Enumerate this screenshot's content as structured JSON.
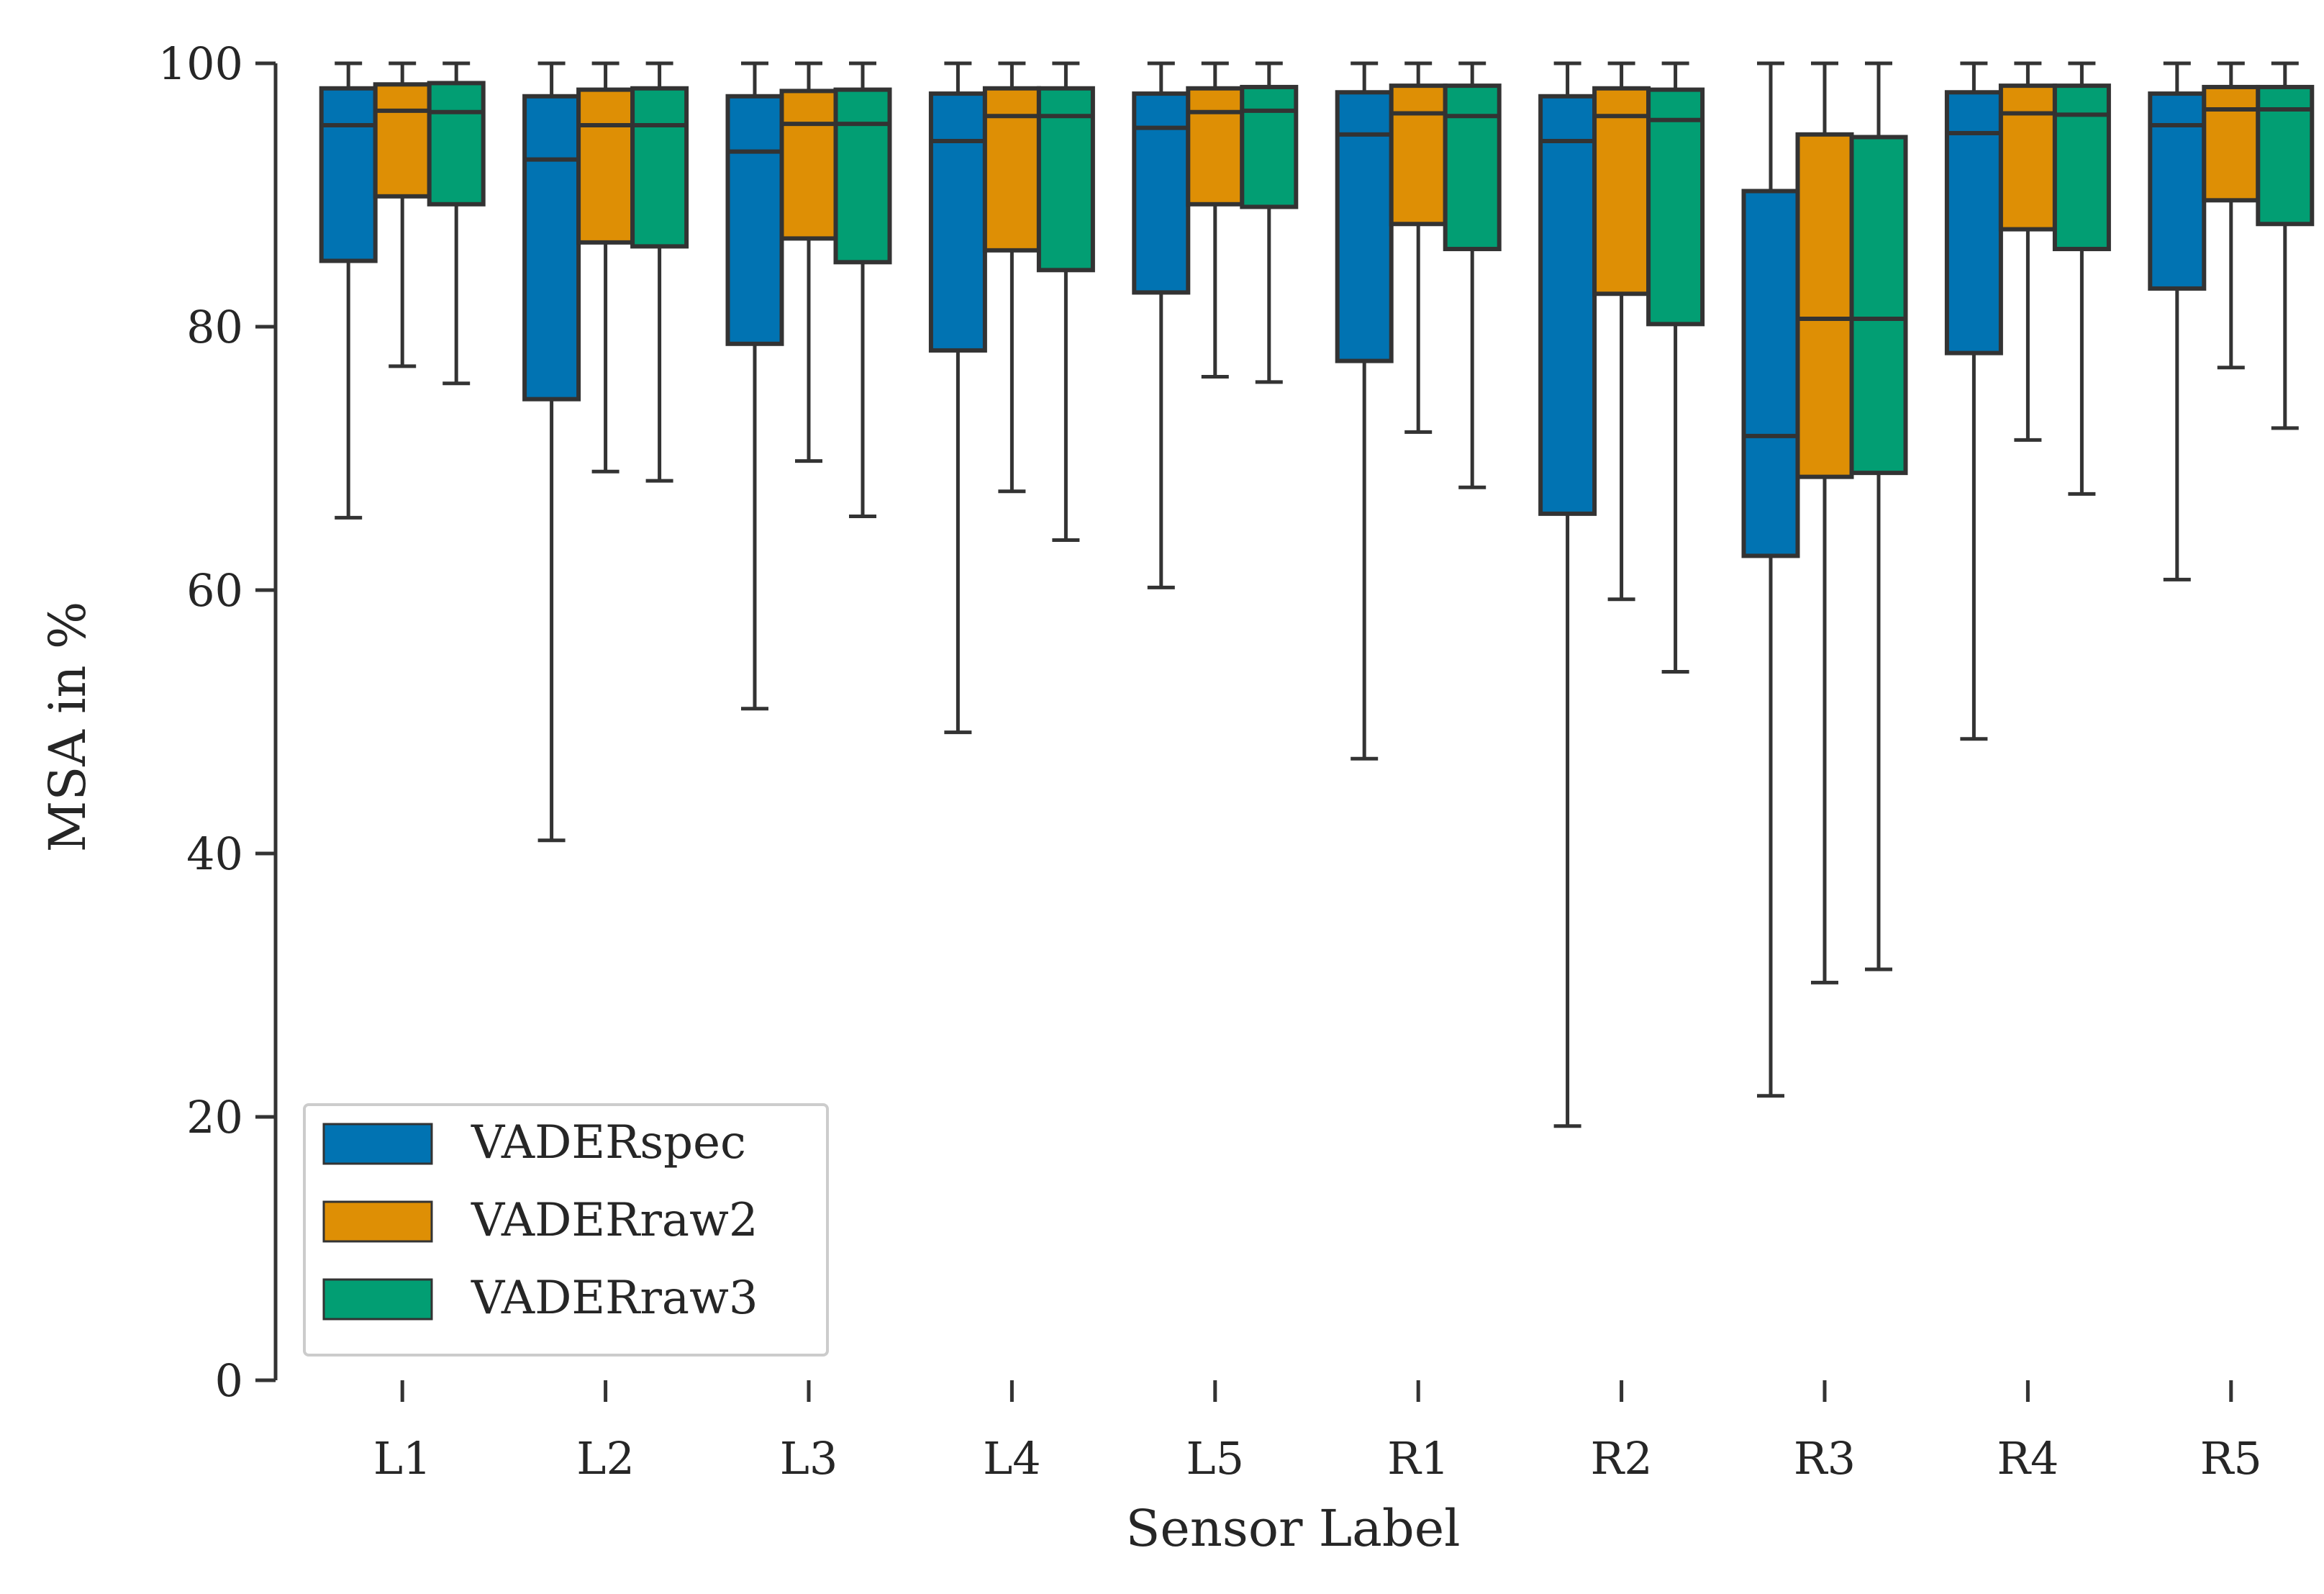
{
  "chart_data": {
    "type": "box",
    "xlabel": "Sensor Label",
    "ylabel": "MSA in %",
    "ylim": [
      0,
      100
    ],
    "yticks": [
      0,
      20,
      40,
      60,
      80,
      100
    ],
    "categories": [
      "L1",
      "L2",
      "L3",
      "L4",
      "L5",
      "R1",
      "R2",
      "R3",
      "R4",
      "R5"
    ],
    "legend": {
      "placement": "lower-left"
    },
    "grid": false,
    "series": [
      {
        "name": "VADERspec",
        "color": "#0173b2",
        "boxes": [
          {
            "whisker_low": 65.5,
            "q1": 85.0,
            "median": 95.3,
            "q3": 98.1,
            "whisker_high": 100
          },
          {
            "whisker_low": 41.0,
            "q1": 74.5,
            "median": 92.7,
            "q3": 97.5,
            "whisker_high": 100
          },
          {
            "whisker_low": 51.0,
            "q1": 78.7,
            "median": 93.3,
            "q3": 97.5,
            "whisker_high": 100
          },
          {
            "whisker_low": 49.2,
            "q1": 78.2,
            "median": 94.1,
            "q3": 97.7,
            "whisker_high": 100
          },
          {
            "whisker_low": 60.2,
            "q1": 82.6,
            "median": 95.1,
            "q3": 97.7,
            "whisker_high": 100
          },
          {
            "whisker_low": 47.2,
            "q1": 77.4,
            "median": 94.6,
            "q3": 97.8,
            "whisker_high": 100
          },
          {
            "whisker_low": 19.3,
            "q1": 65.8,
            "median": 94.1,
            "q3": 97.5,
            "whisker_high": 100
          },
          {
            "whisker_low": 21.6,
            "q1": 62.6,
            "median": 71.7,
            "q3": 90.3,
            "whisker_high": 100
          },
          {
            "whisker_low": 48.7,
            "q1": 78.0,
            "median": 94.7,
            "q3": 97.8,
            "whisker_high": 100
          },
          {
            "whisker_low": 60.8,
            "q1": 82.9,
            "median": 95.3,
            "q3": 97.7,
            "whisker_high": 100
          }
        ]
      },
      {
        "name": "VADERraw2",
        "color": "#de8f05",
        "boxes": [
          {
            "whisker_low": 77.0,
            "q1": 89.9,
            "median": 96.4,
            "q3": 98.4,
            "whisker_high": 100
          },
          {
            "whisker_low": 69.0,
            "q1": 86.4,
            "median": 95.3,
            "q3": 98.0,
            "whisker_high": 100
          },
          {
            "whisker_low": 69.8,
            "q1": 86.7,
            "median": 95.4,
            "q3": 97.9,
            "whisker_high": 100
          },
          {
            "whisker_low": 67.5,
            "q1": 85.8,
            "median": 96.0,
            "q3": 98.1,
            "whisker_high": 100
          },
          {
            "whisker_low": 76.2,
            "q1": 89.3,
            "median": 96.3,
            "q3": 98.1,
            "whisker_high": 100
          },
          {
            "whisker_low": 72.0,
            "q1": 87.8,
            "median": 96.2,
            "q3": 98.3,
            "whisker_high": 100
          },
          {
            "whisker_low": 59.3,
            "q1": 82.5,
            "median": 96.0,
            "q3": 98.1,
            "whisker_high": 100
          },
          {
            "whisker_low": 30.2,
            "q1": 68.6,
            "median": 80.6,
            "q3": 94.6,
            "whisker_high": 100
          },
          {
            "whisker_low": 71.4,
            "q1": 87.4,
            "median": 96.2,
            "q3": 98.3,
            "whisker_high": 100
          },
          {
            "whisker_low": 76.9,
            "q1": 89.6,
            "median": 96.5,
            "q3": 98.2,
            "whisker_high": 100
          }
        ]
      },
      {
        "name": "VADERraw3",
        "color": "#029e73",
        "boxes": [
          {
            "whisker_low": 75.7,
            "q1": 89.3,
            "median": 96.3,
            "q3": 98.5,
            "whisker_high": 100
          },
          {
            "whisker_low": 68.3,
            "q1": 86.1,
            "median": 95.3,
            "q3": 98.1,
            "whisker_high": 100
          },
          {
            "whisker_low": 65.6,
            "q1": 84.9,
            "median": 95.4,
            "q3": 98.0,
            "whisker_high": 100
          },
          {
            "whisker_low": 63.8,
            "q1": 84.3,
            "median": 96.0,
            "q3": 98.1,
            "whisker_high": 100
          },
          {
            "whisker_low": 75.8,
            "q1": 89.1,
            "median": 96.4,
            "q3": 98.2,
            "whisker_high": 100
          },
          {
            "whisker_low": 67.8,
            "q1": 85.9,
            "median": 96.0,
            "q3": 98.3,
            "whisker_high": 100
          },
          {
            "whisker_low": 53.8,
            "q1": 80.2,
            "median": 95.7,
            "q3": 98.0,
            "whisker_high": 100
          },
          {
            "whisker_low": 31.2,
            "q1": 68.9,
            "median": 80.6,
            "q3": 94.4,
            "whisker_high": 100
          },
          {
            "whisker_low": 67.3,
            "q1": 85.9,
            "median": 96.1,
            "q3": 98.3,
            "whisker_high": 100
          },
          {
            "whisker_low": 72.3,
            "q1": 87.8,
            "median": 96.5,
            "q3": 98.2,
            "whisker_high": 100
          }
        ]
      }
    ]
  }
}
